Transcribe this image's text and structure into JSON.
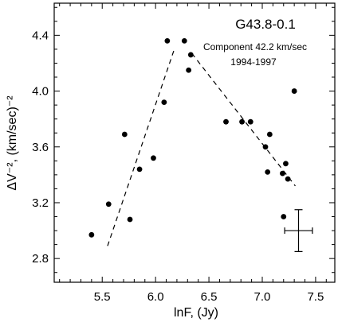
{
  "chart_data": {
    "type": "scatter",
    "xlabel": "lnF,  (Jy)",
    "ylabel": "ΔV⁻²,  (km/sec)⁻²",
    "xlim": [
      5.05,
      7.68
    ],
    "ylim": [
      2.63,
      4.63
    ],
    "x_ticks": [
      "5.5",
      "6.0",
      "6.5",
      "7.0",
      "7.5"
    ],
    "x_tick_values": [
      5.5,
      6.0,
      6.5,
      7.0,
      7.5
    ],
    "y_ticks": [
      "2.8",
      "3.2",
      "3.6",
      "4.0",
      "4.4"
    ],
    "y_tick_values": [
      2.8,
      3.2,
      3.6,
      4.0,
      4.4
    ],
    "annotations": {
      "title": "G43.8-0.1",
      "component": "Component 42.2 km/sec",
      "years": "1994-1997"
    },
    "points": [
      {
        "x": 5.4,
        "y": 2.97
      },
      {
        "x": 5.56,
        "y": 3.19
      },
      {
        "x": 5.71,
        "y": 3.69
      },
      {
        "x": 5.76,
        "y": 3.08
      },
      {
        "x": 5.85,
        "y": 3.44
      },
      {
        "x": 5.98,
        "y": 3.52
      },
      {
        "x": 6.08,
        "y": 3.92
      },
      {
        "x": 6.11,
        "y": 4.36
      },
      {
        "x": 6.27,
        "y": 4.36
      },
      {
        "x": 6.31,
        "y": 4.15
      },
      {
        "x": 6.33,
        "y": 4.26
      },
      {
        "x": 6.66,
        "y": 3.78
      },
      {
        "x": 6.81,
        "y": 3.78
      },
      {
        "x": 6.89,
        "y": 3.78
      },
      {
        "x": 7.03,
        "y": 3.6
      },
      {
        "x": 7.05,
        "y": 3.42
      },
      {
        "x": 7.07,
        "y": 3.69
      },
      {
        "x": 7.19,
        "y": 3.41
      },
      {
        "x": 7.2,
        "y": 3.1
      },
      {
        "x": 7.22,
        "y": 3.48
      },
      {
        "x": 7.24,
        "y": 3.37
      },
      {
        "x": 7.3,
        "y": 4.0
      }
    ],
    "fit_lines": [
      {
        "x": [
          5.55,
          6.18
        ],
        "y": [
          2.89,
          4.31
        ]
      },
      {
        "x": [
          6.34,
          7.31
        ],
        "y": [
          4.27,
          3.32
        ]
      }
    ],
    "error_bar": {
      "x": 7.34,
      "y": 3.0,
      "xerr": 0.13,
      "yerr": 0.15
    }
  }
}
